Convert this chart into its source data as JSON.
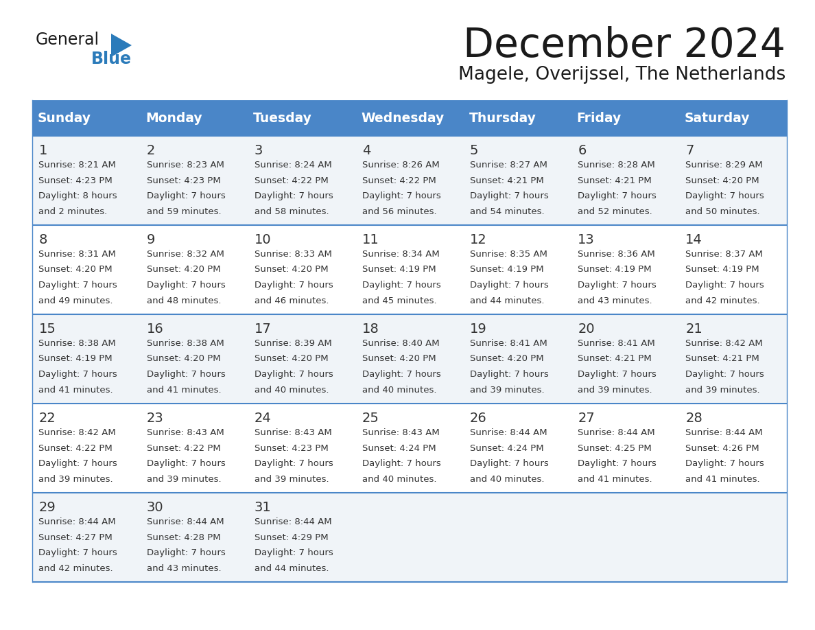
{
  "title": "December 2024",
  "subtitle": "Magele, Overijssel, The Netherlands",
  "header_color": "#4a86c8",
  "header_text_color": "#ffffff",
  "border_color": "#4a86c8",
  "row_bg_odd": "#f0f4f8",
  "row_bg_even": "#ffffff",
  "days_of_week": [
    "Sunday",
    "Monday",
    "Tuesday",
    "Wednesday",
    "Thursday",
    "Friday",
    "Saturday"
  ],
  "weeks": [
    [
      {
        "day": 1,
        "sunrise": "8:21 AM",
        "sunset": "4:23 PM",
        "daylight_line1": "Daylight: 8 hours",
        "daylight_line2": "and 2 minutes."
      },
      {
        "day": 2,
        "sunrise": "8:23 AM",
        "sunset": "4:23 PM",
        "daylight_line1": "Daylight: 7 hours",
        "daylight_line2": "and 59 minutes."
      },
      {
        "day": 3,
        "sunrise": "8:24 AM",
        "sunset": "4:22 PM",
        "daylight_line1": "Daylight: 7 hours",
        "daylight_line2": "and 58 minutes."
      },
      {
        "day": 4,
        "sunrise": "8:26 AM",
        "sunset": "4:22 PM",
        "daylight_line1": "Daylight: 7 hours",
        "daylight_line2": "and 56 minutes."
      },
      {
        "day": 5,
        "sunrise": "8:27 AM",
        "sunset": "4:21 PM",
        "daylight_line1": "Daylight: 7 hours",
        "daylight_line2": "and 54 minutes."
      },
      {
        "day": 6,
        "sunrise": "8:28 AM",
        "sunset": "4:21 PM",
        "daylight_line1": "Daylight: 7 hours",
        "daylight_line2": "and 52 minutes."
      },
      {
        "day": 7,
        "sunrise": "8:29 AM",
        "sunset": "4:20 PM",
        "daylight_line1": "Daylight: 7 hours",
        "daylight_line2": "and 50 minutes."
      }
    ],
    [
      {
        "day": 8,
        "sunrise": "8:31 AM",
        "sunset": "4:20 PM",
        "daylight_line1": "Daylight: 7 hours",
        "daylight_line2": "and 49 minutes."
      },
      {
        "day": 9,
        "sunrise": "8:32 AM",
        "sunset": "4:20 PM",
        "daylight_line1": "Daylight: 7 hours",
        "daylight_line2": "and 48 minutes."
      },
      {
        "day": 10,
        "sunrise": "8:33 AM",
        "sunset": "4:20 PM",
        "daylight_line1": "Daylight: 7 hours",
        "daylight_line2": "and 46 minutes."
      },
      {
        "day": 11,
        "sunrise": "8:34 AM",
        "sunset": "4:19 PM",
        "daylight_line1": "Daylight: 7 hours",
        "daylight_line2": "and 45 minutes."
      },
      {
        "day": 12,
        "sunrise": "8:35 AM",
        "sunset": "4:19 PM",
        "daylight_line1": "Daylight: 7 hours",
        "daylight_line2": "and 44 minutes."
      },
      {
        "day": 13,
        "sunrise": "8:36 AM",
        "sunset": "4:19 PM",
        "daylight_line1": "Daylight: 7 hours",
        "daylight_line2": "and 43 minutes."
      },
      {
        "day": 14,
        "sunrise": "8:37 AM",
        "sunset": "4:19 PM",
        "daylight_line1": "Daylight: 7 hours",
        "daylight_line2": "and 42 minutes."
      }
    ],
    [
      {
        "day": 15,
        "sunrise": "8:38 AM",
        "sunset": "4:19 PM",
        "daylight_line1": "Daylight: 7 hours",
        "daylight_line2": "and 41 minutes."
      },
      {
        "day": 16,
        "sunrise": "8:38 AM",
        "sunset": "4:20 PM",
        "daylight_line1": "Daylight: 7 hours",
        "daylight_line2": "and 41 minutes."
      },
      {
        "day": 17,
        "sunrise": "8:39 AM",
        "sunset": "4:20 PM",
        "daylight_line1": "Daylight: 7 hours",
        "daylight_line2": "and 40 minutes."
      },
      {
        "day": 18,
        "sunrise": "8:40 AM",
        "sunset": "4:20 PM",
        "daylight_line1": "Daylight: 7 hours",
        "daylight_line2": "and 40 minutes."
      },
      {
        "day": 19,
        "sunrise": "8:41 AM",
        "sunset": "4:20 PM",
        "daylight_line1": "Daylight: 7 hours",
        "daylight_line2": "and 39 minutes."
      },
      {
        "day": 20,
        "sunrise": "8:41 AM",
        "sunset": "4:21 PM",
        "daylight_line1": "Daylight: 7 hours",
        "daylight_line2": "and 39 minutes."
      },
      {
        "day": 21,
        "sunrise": "8:42 AM",
        "sunset": "4:21 PM",
        "daylight_line1": "Daylight: 7 hours",
        "daylight_line2": "and 39 minutes."
      }
    ],
    [
      {
        "day": 22,
        "sunrise": "8:42 AM",
        "sunset": "4:22 PM",
        "daylight_line1": "Daylight: 7 hours",
        "daylight_line2": "and 39 minutes."
      },
      {
        "day": 23,
        "sunrise": "8:43 AM",
        "sunset": "4:22 PM",
        "daylight_line1": "Daylight: 7 hours",
        "daylight_line2": "and 39 minutes."
      },
      {
        "day": 24,
        "sunrise": "8:43 AM",
        "sunset": "4:23 PM",
        "daylight_line1": "Daylight: 7 hours",
        "daylight_line2": "and 39 minutes."
      },
      {
        "day": 25,
        "sunrise": "8:43 AM",
        "sunset": "4:24 PM",
        "daylight_line1": "Daylight: 7 hours",
        "daylight_line2": "and 40 minutes."
      },
      {
        "day": 26,
        "sunrise": "8:44 AM",
        "sunset": "4:24 PM",
        "daylight_line1": "Daylight: 7 hours",
        "daylight_line2": "and 40 minutes."
      },
      {
        "day": 27,
        "sunrise": "8:44 AM",
        "sunset": "4:25 PM",
        "daylight_line1": "Daylight: 7 hours",
        "daylight_line2": "and 41 minutes."
      },
      {
        "day": 28,
        "sunrise": "8:44 AM",
        "sunset": "4:26 PM",
        "daylight_line1": "Daylight: 7 hours",
        "daylight_line2": "and 41 minutes."
      }
    ],
    [
      {
        "day": 29,
        "sunrise": "8:44 AM",
        "sunset": "4:27 PM",
        "daylight_line1": "Daylight: 7 hours",
        "daylight_line2": "and 42 minutes."
      },
      {
        "day": 30,
        "sunrise": "8:44 AM",
        "sunset": "4:28 PM",
        "daylight_line1": "Daylight: 7 hours",
        "daylight_line2": "and 43 minutes."
      },
      {
        "day": 31,
        "sunrise": "8:44 AM",
        "sunset": "4:29 PM",
        "daylight_line1": "Daylight: 7 hours",
        "daylight_line2": "and 44 minutes."
      },
      null,
      null,
      null,
      null
    ]
  ],
  "logo_general_color": "#1a1a1a",
  "logo_blue_color": "#2b7bba"
}
